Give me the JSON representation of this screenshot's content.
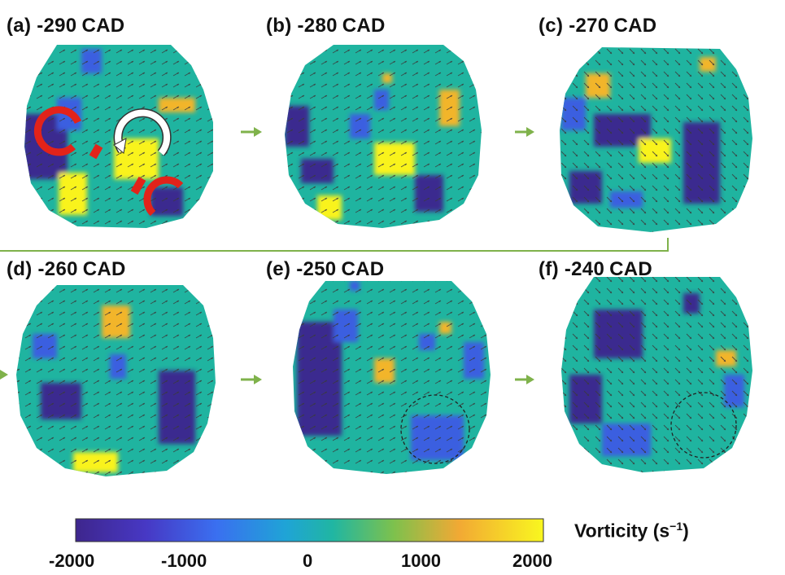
{
  "figure": {
    "panels": [
      {
        "id": "a",
        "label": "(a)",
        "angle": "-290",
        "unit": "CAD"
      },
      {
        "id": "b",
        "label": "(b)",
        "angle": "-280",
        "unit": "CAD"
      },
      {
        "id": "c",
        "label": "(c)",
        "angle": "-270",
        "unit": "CAD"
      },
      {
        "id": "d",
        "label": "(d)",
        "angle": "-260",
        "unit": "CAD"
      },
      {
        "id": "e",
        "label": "(e)",
        "angle": "-250",
        "unit": "CAD"
      },
      {
        "id": "f",
        "label": "(f)",
        "angle": "-240",
        "unit": "CAD"
      }
    ],
    "colorbar": {
      "title": "Vorticity",
      "unit_base": "(s",
      "unit_exp": "−1",
      "unit_close": ")",
      "ticks": [
        "-2000",
        "-1000",
        "0",
        "1000",
        "2000"
      ],
      "range": [
        -2000,
        2000
      ]
    },
    "colors": {
      "background_field": "#1fb4a0",
      "negative_strong": "#3b2a8f",
      "negative_mid": "#3a5fe0",
      "positive_mid": "#f0a832",
      "positive_strong": "#f9f31f",
      "arrow": "#333333",
      "annotation_red": "#e2231a",
      "annotation_white": "#ffffff",
      "sequence_arrow": "#7fb24b"
    },
    "icons": [
      "sequence-arrow-icon",
      "vortex-rotation-icon"
    ]
  }
}
